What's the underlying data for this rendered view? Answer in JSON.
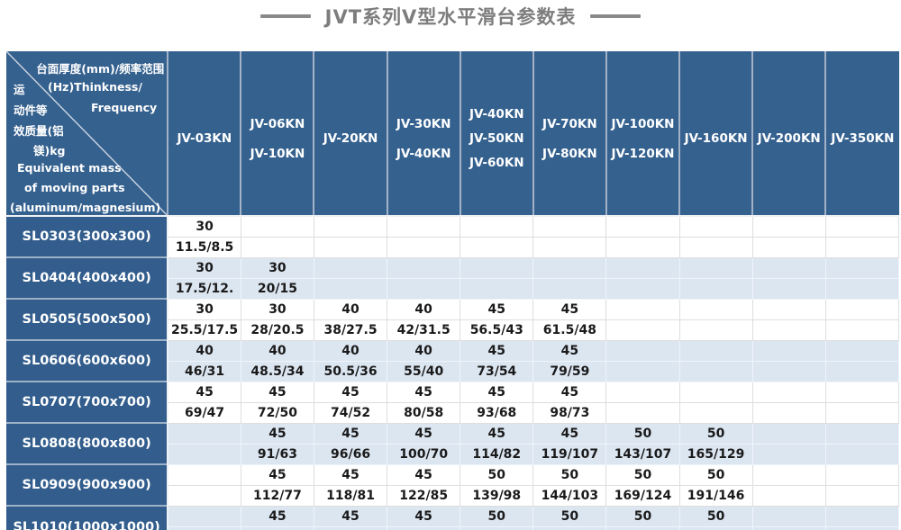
{
  "title": {
    "text": "JVT系列V型水平滑台参数表"
  },
  "colors": {
    "header_blue": "#35618f",
    "row_header_blue": "#325d8c",
    "alt_row_blue": "#dce6f1",
    "title_gray": "#7d7d7d",
    "data_text": "#1a1a1a"
  },
  "table": {
    "corner": {
      "c1": "台面厚度(mm)/频率范围",
      "zh1": "运",
      "en1": "(Hz)Thinkness/",
      "zh2": "动件等",
      "en2": "Frequency",
      "zh3": "效质量(铝",
      "zh4": "镁)kg",
      "en3": "Equivalent mass",
      "en4": "of moving parts",
      "en5": "(aluminum/magnesium)"
    },
    "columns": [
      {
        "models": [
          "JV-03KN"
        ]
      },
      {
        "models": [
          "JV-06KN",
          "JV-10KN"
        ]
      },
      {
        "models": [
          "JV-20KN"
        ]
      },
      {
        "models": [
          "JV-30KN",
          "JV-40KN"
        ]
      },
      {
        "models": [
          "JV-40KN",
          "JV-50KN",
          "JV-60KN"
        ]
      },
      {
        "models": [
          "JV-70KN",
          "JV-80KN"
        ]
      },
      {
        "models": [
          "JV-100KN",
          "JV-120KN"
        ]
      },
      {
        "models": [
          "JV-160KN"
        ]
      },
      {
        "models": [
          "JV-200KN"
        ]
      },
      {
        "models": [
          "JV-350KN"
        ]
      }
    ],
    "rows": [
      {
        "label": "SL0303(300x300)",
        "thickness": [
          "30",
          "",
          "",
          "",
          "",
          "",
          "",
          "",
          "",
          ""
        ],
        "frequency": [
          "11.5/8.5",
          "",
          "",
          "",
          "",
          "",
          "",
          "",
          "",
          ""
        ]
      },
      {
        "label": "SL0404(400x400)",
        "thickness": [
          "30",
          "30",
          "",
          "",
          "",
          "",
          "",
          "",
          "",
          ""
        ],
        "frequency": [
          "17.5/12.",
          "20/15",
          "",
          "",
          "",
          "",
          "",
          "",
          "",
          ""
        ]
      },
      {
        "label": "SL0505(500x500)",
        "thickness": [
          "30",
          "30",
          "40",
          "40",
          "45",
          "45",
          "",
          "",
          "",
          ""
        ],
        "frequency": [
          "25.5/17.5",
          "28/20.5",
          "38/27.5",
          "42/31.5",
          "56.5/43",
          "61.5/48",
          "",
          "",
          "",
          ""
        ]
      },
      {
        "label": "SL0606(600x600)",
        "thickness": [
          "40",
          "40",
          "40",
          "40",
          "45",
          "45",
          "",
          "",
          "",
          ""
        ],
        "frequency": [
          "46/31",
          "48.5/34",
          "50.5/36",
          "55/40",
          "73/54",
          "79/59",
          "",
          "",
          "",
          ""
        ]
      },
      {
        "label": "SL0707(700x700)",
        "thickness": [
          "45",
          "45",
          "45",
          "45",
          "45",
          "45",
          "",
          "",
          "",
          ""
        ],
        "frequency": [
          "69/47",
          "72/50",
          "74/52",
          "80/58",
          "93/68",
          "98/73",
          "",
          "",
          "",
          ""
        ]
      },
      {
        "label": "SL0808(800x800)",
        "thickness": [
          "",
          "45",
          "45",
          "45",
          "45",
          "45",
          "50",
          "50",
          "",
          ""
        ],
        "frequency": [
          "",
          "91/63",
          "96/66",
          "100/70",
          "114/82",
          "119/107",
          "143/107",
          "165/129",
          "",
          ""
        ]
      },
      {
        "label": "SL0909(900x900)",
        "thickness": [
          "",
          "45",
          "45",
          "45",
          "50",
          "50",
          "50",
          "50",
          "",
          ""
        ],
        "frequency": [
          "",
          "112/77",
          "118/81",
          "122/85",
          "139/98",
          "144/103",
          "169/124",
          "191/146",
          "",
          ""
        ]
      },
      {
        "label": "SL1010(1000x1000)",
        "thickness": [
          "",
          "45",
          "45",
          "45",
          "50",
          "50",
          "50",
          "50",
          "",
          ""
        ],
        "frequency": [
          "",
          "",
          "",
          "",
          "",
          "",
          "",
          "",
          "",
          ""
        ]
      }
    ]
  }
}
